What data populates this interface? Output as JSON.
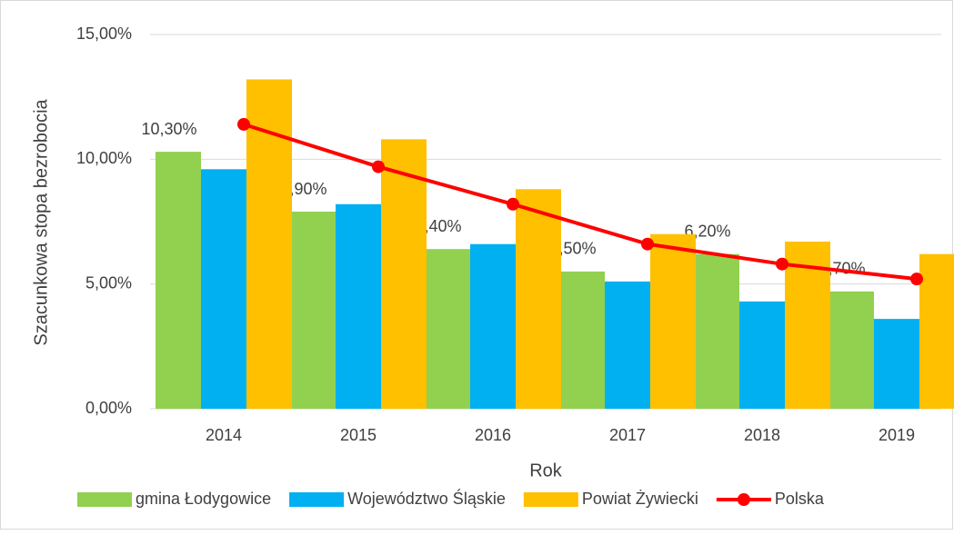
{
  "chart_data": {
    "type": "bar_line",
    "x_label": "Rok",
    "y_label": "Szacunkowa stopa bezrobocia",
    "categories": [
      "2014",
      "2015",
      "2016",
      "2017",
      "2018",
      "2019"
    ],
    "series": [
      {
        "name": "gmina Łodygowice",
        "type": "bar",
        "color": "#92d050",
        "values": [
          10.3,
          7.9,
          6.4,
          5.5,
          6.2,
          4.7
        ],
        "value_labels": [
          "10,30%",
          "7,90%",
          "6,40%",
          "5,50%",
          "6,20%",
          "4,70%"
        ]
      },
      {
        "name": "Województwo Śląskie",
        "type": "bar",
        "color": "#00b0f0",
        "values": [
          9.6,
          8.2,
          6.6,
          5.1,
          4.3,
          3.6
        ]
      },
      {
        "name": "Powiat Żywiecki",
        "type": "bar",
        "color": "#ffc000",
        "values": [
          13.2,
          10.8,
          8.8,
          7.0,
          6.7,
          6.2
        ]
      },
      {
        "name": "Polska",
        "type": "line",
        "color": "#ff0000",
        "values": [
          11.4,
          9.7,
          8.2,
          6.6,
          5.8,
          5.2
        ]
      }
    ],
    "ylim": [
      0,
      15
    ],
    "yticks": [
      {
        "value": 0,
        "label": "0,00%"
      },
      {
        "value": 5,
        "label": "5,00%"
      },
      {
        "value": 10,
        "label": "10,00%"
      },
      {
        "value": 15,
        "label": "15,00%"
      }
    ],
    "grid": true,
    "legend": "bottom"
  }
}
